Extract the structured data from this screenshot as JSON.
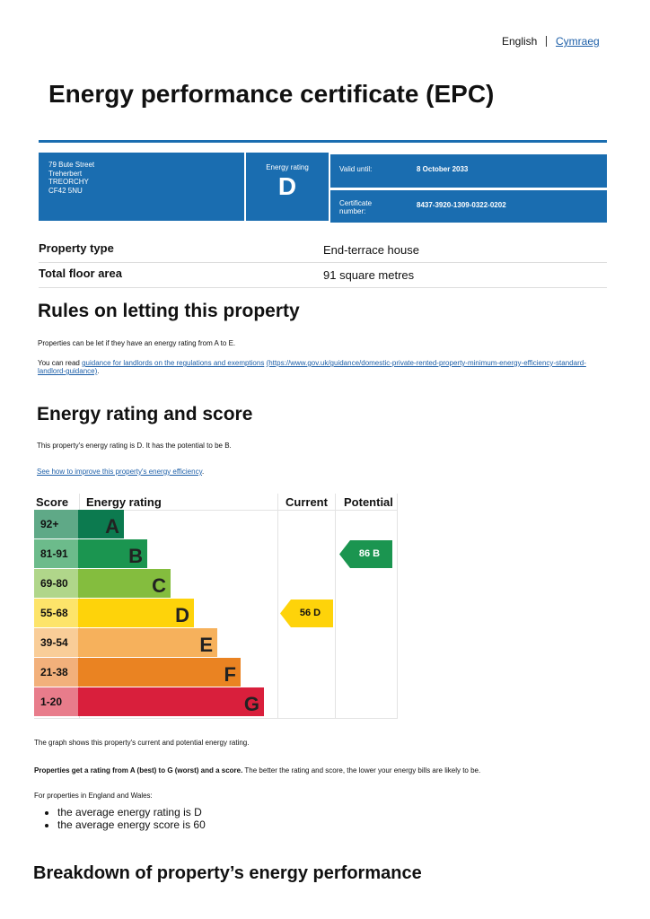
{
  "language": {
    "current": "English",
    "other": "Cymraeg"
  },
  "title": "Energy performance certificate (EPC)",
  "header_box": {
    "address": [
      "79 Bute Street",
      "Treherbert",
      "TREORCHY",
      "CF42 5NU"
    ],
    "energy_rating_label": "Energy rating",
    "energy_rating": "D",
    "valid_until_label": "Valid until:",
    "valid_until": "8 October 2033",
    "certificate_label": "Certificate number:",
    "certificate_number": "8437-3920-1309-0322-0202"
  },
  "property": {
    "rows": [
      [
        "Property type",
        "End-terrace house"
      ],
      [
        "Total floor area",
        "91 square metres"
      ]
    ]
  },
  "rules": {
    "heading": "Rules on letting this property",
    "text": "Properties can be let if they have an energy rating from A to E.",
    "guidance_prefix": "You can read ",
    "guidance_link": "guidance for landlords on the regulations and exemptions",
    "guidance_url": "(https://www.gov.uk/guidance/domestic-private-rented-property-minimum-energy-efficiency-standard-landlord-guidance)",
    "guidance_suffix": "."
  },
  "energy": {
    "heading": "Energy rating and score",
    "text": "This property's energy rating is D. It has the potential to be B.",
    "improve_link": "See how to improve this property's energy efficiency",
    "improve_suffix": "."
  },
  "rating_chart": {
    "headers": [
      "Score",
      "Energy rating",
      "Current",
      "Potential"
    ],
    "bands": [
      {
        "score": "92+",
        "letter": "A"
      },
      {
        "score": "81-91",
        "letter": "B"
      },
      {
        "score": "69-80",
        "letter": "C"
      },
      {
        "score": "55-68",
        "letter": "D"
      },
      {
        "score": "39-54",
        "letter": "E"
      },
      {
        "score": "21-38",
        "letter": "F"
      },
      {
        "score": "1-20",
        "letter": "G"
      }
    ],
    "current": {
      "score": 56,
      "letter": "D"
    },
    "potential": {
      "score": 86,
      "letter": "B"
    }
  },
  "notes": {
    "graph": "The graph shows this property's current and potential energy rating.",
    "bold": "Properties get a rating from A (best) to G (worst) and a score.",
    "rest": " The better the rating and score, the lower your energy bills are likely to be.",
    "region": "For properties in England and Wales:",
    "bullets": [
      "the average energy rating is D",
      "the average energy score is 60"
    ]
  },
  "breakdown_heading": "Breakdown of property’s energy performance"
}
